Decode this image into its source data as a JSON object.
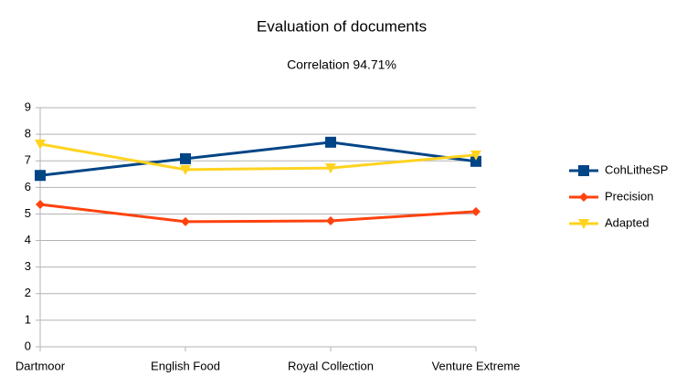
{
  "chart_data": {
    "type": "line",
    "title": "Evaluation of documents",
    "subtitle": "Correlation 94.71%",
    "categories": [
      "Dartmoor",
      "English Food",
      "Royal Collection",
      "Venture Extreme"
    ],
    "series": [
      {
        "name": "CohLitheSP",
        "color": "#004586",
        "marker": "square",
        "values": [
          6.45,
          7.08,
          7.7,
          6.98
        ]
      },
      {
        "name": "Precision",
        "color": "#ff420e",
        "marker": "diamond",
        "values": [
          5.36,
          4.71,
          4.74,
          5.09
        ]
      },
      {
        "name": "Adapted",
        "color": "#ffd320",
        "marker": "triangle-down",
        "values": [
          7.63,
          6.67,
          6.73,
          7.22
        ]
      }
    ],
    "ylim": [
      0,
      9
    ],
    "yticks": [
      0,
      1,
      2,
      3,
      4,
      5,
      6,
      7,
      8,
      9
    ],
    "grid": true,
    "legend": "right"
  }
}
